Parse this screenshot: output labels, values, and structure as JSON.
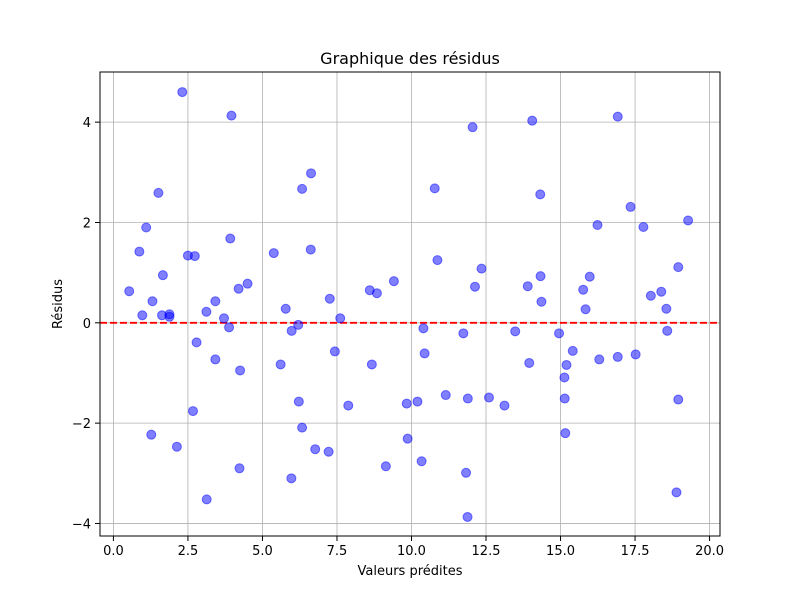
{
  "chart_data": {
    "type": "scatter",
    "title": "Graphique des résidus",
    "xlabel": "Valeurs prédites",
    "ylabel": "Résidus",
    "xlim": [
      -0.45,
      20.35
    ],
    "ylim": [
      -4.25,
      5.0
    ],
    "xticks": [
      0.0,
      2.5,
      5.0,
      7.5,
      10.0,
      12.5,
      15.0,
      17.5,
      20.0
    ],
    "xtick_labels": [
      "0.0",
      "2.5",
      "5.0",
      "7.5",
      "10.0",
      "12.5",
      "15.0",
      "17.5",
      "20.0"
    ],
    "yticks": [
      -4,
      -2,
      0,
      2,
      4
    ],
    "ytick_labels": [
      "−4",
      "−2",
      "0",
      "2",
      "4"
    ],
    "grid": true,
    "point_color": "#0000ff",
    "point_opacity": 0.5,
    "reference_line": {
      "y": 0,
      "color": "#ff0000",
      "style": "dashed"
    },
    "points": [
      [
        0.53,
        0.63
      ],
      [
        0.87,
        1.42
      ],
      [
        0.97,
        0.15
      ],
      [
        1.1,
        1.9
      ],
      [
        1.27,
        -2.23
      ],
      [
        1.31,
        0.43
      ],
      [
        1.51,
        2.59
      ],
      [
        1.63,
        0.15
      ],
      [
        1.66,
        0.95
      ],
      [
        1.88,
        0.17
      ],
      [
        1.88,
        0.12
      ],
      [
        2.13,
        -2.47
      ],
      [
        2.31,
        4.6
      ],
      [
        2.5,
        1.34
      ],
      [
        2.67,
        -1.76
      ],
      [
        2.73,
        1.33
      ],
      [
        2.79,
        -0.39
      ],
      [
        3.12,
        0.22
      ],
      [
        3.13,
        -3.52
      ],
      [
        3.42,
        0.43
      ],
      [
        3.42,
        -0.73
      ],
      [
        3.71,
        0.09
      ],
      [
        3.88,
        -0.09
      ],
      [
        3.92,
        1.68
      ],
      [
        3.96,
        4.13
      ],
      [
        4.2,
        0.68
      ],
      [
        4.23,
        -2.9
      ],
      [
        4.25,
        -0.95
      ],
      [
        4.5,
        0.78
      ],
      [
        5.38,
        1.39
      ],
      [
        5.61,
        -0.83
      ],
      [
        5.78,
        0.28
      ],
      [
        5.97,
        -3.1
      ],
      [
        5.98,
        -0.16
      ],
      [
        6.2,
        -0.04
      ],
      [
        6.22,
        -1.57
      ],
      [
        6.33,
        2.67
      ],
      [
        6.33,
        -2.09
      ],
      [
        6.62,
        1.46
      ],
      [
        6.63,
        2.98
      ],
      [
        6.77,
        -2.52
      ],
      [
        7.22,
        -2.57
      ],
      [
        7.26,
        0.48
      ],
      [
        7.43,
        -0.57
      ],
      [
        7.61,
        0.09
      ],
      [
        7.88,
        -1.65
      ],
      [
        8.6,
        0.65
      ],
      [
        8.67,
        -0.83
      ],
      [
        8.84,
        0.59
      ],
      [
        9.14,
        -2.86
      ],
      [
        9.41,
        0.83
      ],
      [
        9.84,
        -1.61
      ],
      [
        9.87,
        -2.31
      ],
      [
        10.2,
        -1.57
      ],
      [
        10.34,
        -2.76
      ],
      [
        10.4,
        -0.11
      ],
      [
        10.44,
        -0.61
      ],
      [
        10.78,
        2.68
      ],
      [
        10.87,
        1.25
      ],
      [
        11.15,
        -1.44
      ],
      [
        11.74,
        -0.21
      ],
      [
        11.83,
        -2.99
      ],
      [
        11.88,
        -3.87
      ],
      [
        11.89,
        -1.51
      ],
      [
        12.05,
        3.9
      ],
      [
        12.13,
        0.72
      ],
      [
        12.35,
        1.08
      ],
      [
        12.6,
        -1.49
      ],
      [
        13.12,
        -1.65
      ],
      [
        13.48,
        -0.17
      ],
      [
        13.9,
        0.73
      ],
      [
        13.95,
        -0.8
      ],
      [
        14.05,
        4.03
      ],
      [
        14.32,
        2.56
      ],
      [
        14.33,
        0.93
      ],
      [
        14.36,
        0.42
      ],
      [
        14.95,
        -0.21
      ],
      [
        15.13,
        -1.09
      ],
      [
        15.14,
        -1.51
      ],
      [
        15.16,
        -2.2
      ],
      [
        15.2,
        -0.84
      ],
      [
        15.41,
        -0.56
      ],
      [
        15.76,
        0.66
      ],
      [
        15.84,
        0.27
      ],
      [
        15.98,
        0.92
      ],
      [
        16.24,
        1.95
      ],
      [
        16.3,
        -0.73
      ],
      [
        16.92,
        4.11
      ],
      [
        16.92,
        -0.68
      ],
      [
        17.35,
        2.31
      ],
      [
        17.52,
        -0.63
      ],
      [
        17.78,
        1.91
      ],
      [
        18.03,
        0.54
      ],
      [
        18.38,
        0.62
      ],
      [
        18.55,
        0.28
      ],
      [
        18.58,
        -0.16
      ],
      [
        18.89,
        -3.38
      ],
      [
        18.95,
        1.11
      ],
      [
        18.95,
        -1.53
      ],
      [
        19.28,
        2.04
      ]
    ]
  }
}
